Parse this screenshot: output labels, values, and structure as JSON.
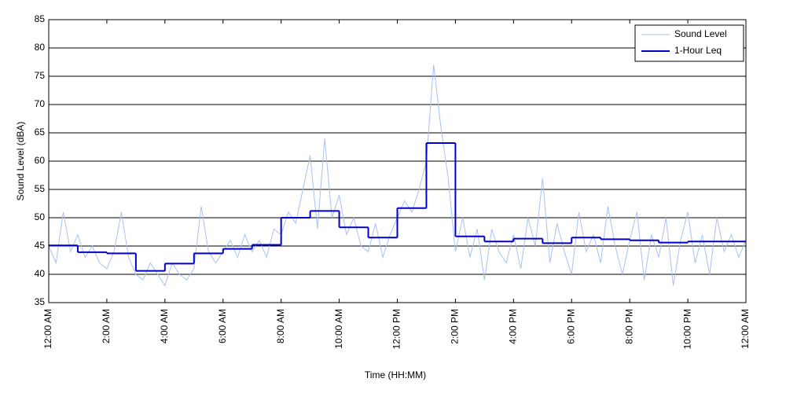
{
  "chart_data": {
    "type": "line",
    "xlabel": "Time (HH:MM)",
    "ylabel": "Sound Level (dBA)",
    "xlim": [
      0,
      24
    ],
    "ylim": [
      35,
      85
    ],
    "xticks": [
      {
        "value": 0,
        "label": "12:00 AM"
      },
      {
        "value": 2,
        "label": "2:00 AM"
      },
      {
        "value": 4,
        "label": "4:00 AM"
      },
      {
        "value": 6,
        "label": "6:00 AM"
      },
      {
        "value": 8,
        "label": "8:00 AM"
      },
      {
        "value": 10,
        "label": "10:00 AM"
      },
      {
        "value": 12,
        "label": "12:00 PM"
      },
      {
        "value": 14,
        "label": "2:00 PM"
      },
      {
        "value": 16,
        "label": "4:00 PM"
      },
      {
        "value": 18,
        "label": "6:00 PM"
      },
      {
        "value": 20,
        "label": "8:00 PM"
      },
      {
        "value": 22,
        "label": "10:00 PM"
      },
      {
        "value": 24,
        "label": "12:00 AM"
      }
    ],
    "yticks": [
      35,
      40,
      45,
      50,
      55,
      60,
      65,
      70,
      75,
      80,
      85
    ],
    "grid": true,
    "legend": "upper right",
    "series": [
      {
        "name": "Sound Level",
        "color": "#a9c1f3",
        "step": false,
        "x": [
          0,
          0.25,
          0.5,
          0.75,
          1,
          1.25,
          1.5,
          1.75,
          2,
          2.25,
          2.5,
          2.75,
          3,
          3.25,
          3.5,
          3.75,
          4,
          4.25,
          4.5,
          4.75,
          5,
          5.25,
          5.5,
          5.75,
          6,
          6.25,
          6.5,
          6.75,
          7,
          7.25,
          7.5,
          7.75,
          8,
          8.25,
          8.5,
          8.75,
          9,
          9.25,
          9.5,
          9.75,
          10,
          10.25,
          10.5,
          10.75,
          11,
          11.25,
          11.5,
          11.75,
          12,
          12.25,
          12.5,
          12.75,
          13,
          13.25,
          13.5,
          13.75,
          14,
          14.25,
          14.5,
          14.75,
          15,
          15.25,
          15.5,
          15.75,
          16,
          16.25,
          16.5,
          16.75,
          17,
          17.25,
          17.5,
          17.75,
          18,
          18.25,
          18.5,
          18.75,
          19,
          19.25,
          19.5,
          19.75,
          20,
          20.25,
          20.5,
          20.75,
          21,
          21.25,
          21.5,
          21.75,
          22,
          22.25,
          22.5,
          22.75,
          23,
          23.25,
          23.5,
          23.75,
          24
        ],
        "values": [
          45,
          42,
          51,
          44,
          47,
          43,
          45,
          42,
          41,
          44,
          51,
          43,
          40,
          39,
          42,
          40,
          38,
          42,
          40,
          39,
          41,
          52,
          44,
          42,
          44,
          46,
          43,
          47,
          44,
          46,
          43,
          48,
          47,
          51,
          49,
          55,
          61,
          48,
          64,
          50,
          54,
          47,
          50,
          45,
          44,
          49,
          43,
          47,
          50,
          53,
          51,
          55,
          60,
          77,
          66,
          57,
          44,
          50,
          43,
          48,
          39,
          48,
          44,
          42,
          47,
          41,
          50,
          45,
          57,
          42,
          49,
          44,
          40,
          51,
          44,
          47,
          42,
          52,
          45,
          40,
          46,
          51,
          39,
          47,
          43,
          50,
          38,
          46,
          51,
          42,
          47,
          40,
          50,
          44,
          47,
          43,
          46
        ]
      },
      {
        "name": "1-Hour Leq",
        "color": "#0000c8",
        "step": true,
        "x": [
          0,
          1,
          2,
          3,
          4,
          5,
          6,
          7,
          8,
          9,
          10,
          11,
          12,
          13,
          14,
          15,
          16,
          17,
          18,
          19,
          20,
          21,
          22,
          23
        ],
        "values": [
          45.1,
          43.9,
          43.7,
          40.6,
          41.9,
          43.7,
          44.5,
          45.2,
          50.0,
          51.2,
          48.3,
          46.5,
          51.7,
          63.2,
          46.7,
          45.8,
          46.3,
          45.5,
          46.5,
          46.2,
          46.0,
          45.6,
          45.8,
          45.8
        ]
      }
    ]
  }
}
